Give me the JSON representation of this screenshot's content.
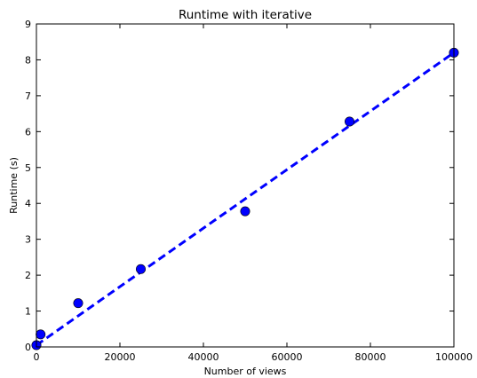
{
  "chart_data": {
    "type": "scatter",
    "title": "Runtime with iterative",
    "xlabel": "Number of views",
    "ylabel": "Runtime (s)",
    "xlim": [
      0,
      100000
    ],
    "ylim": [
      0,
      9
    ],
    "xticks": [
      0,
      20000,
      40000,
      60000,
      80000,
      100000
    ],
    "xtick_labels": [
      "0",
      "20000",
      "40000",
      "60000",
      "80000",
      "100000"
    ],
    "yticks": [
      0,
      1,
      2,
      3,
      4,
      5,
      6,
      7,
      8,
      9
    ],
    "ytick_labels": [
      "0",
      "1",
      "2",
      "3",
      "4",
      "5",
      "6",
      "7",
      "8",
      "9"
    ],
    "grid": false,
    "series": [
      {
        "type": "scatter",
        "color": "#0000ff",
        "marker": "circle",
        "points": [
          {
            "x": 0,
            "y": 0.05
          },
          {
            "x": 1000,
            "y": 0.35
          },
          {
            "x": 10000,
            "y": 1.22
          },
          {
            "x": 25000,
            "y": 2.17
          },
          {
            "x": 50000,
            "y": 3.78
          },
          {
            "x": 75000,
            "y": 6.28
          },
          {
            "x": 100000,
            "y": 8.2
          }
        ]
      },
      {
        "type": "line",
        "style": "dashed",
        "color": "#0000ff",
        "points": [
          {
            "x": 0,
            "y": 0.05
          },
          {
            "x": 100000,
            "y": 8.2
          }
        ]
      }
    ]
  }
}
